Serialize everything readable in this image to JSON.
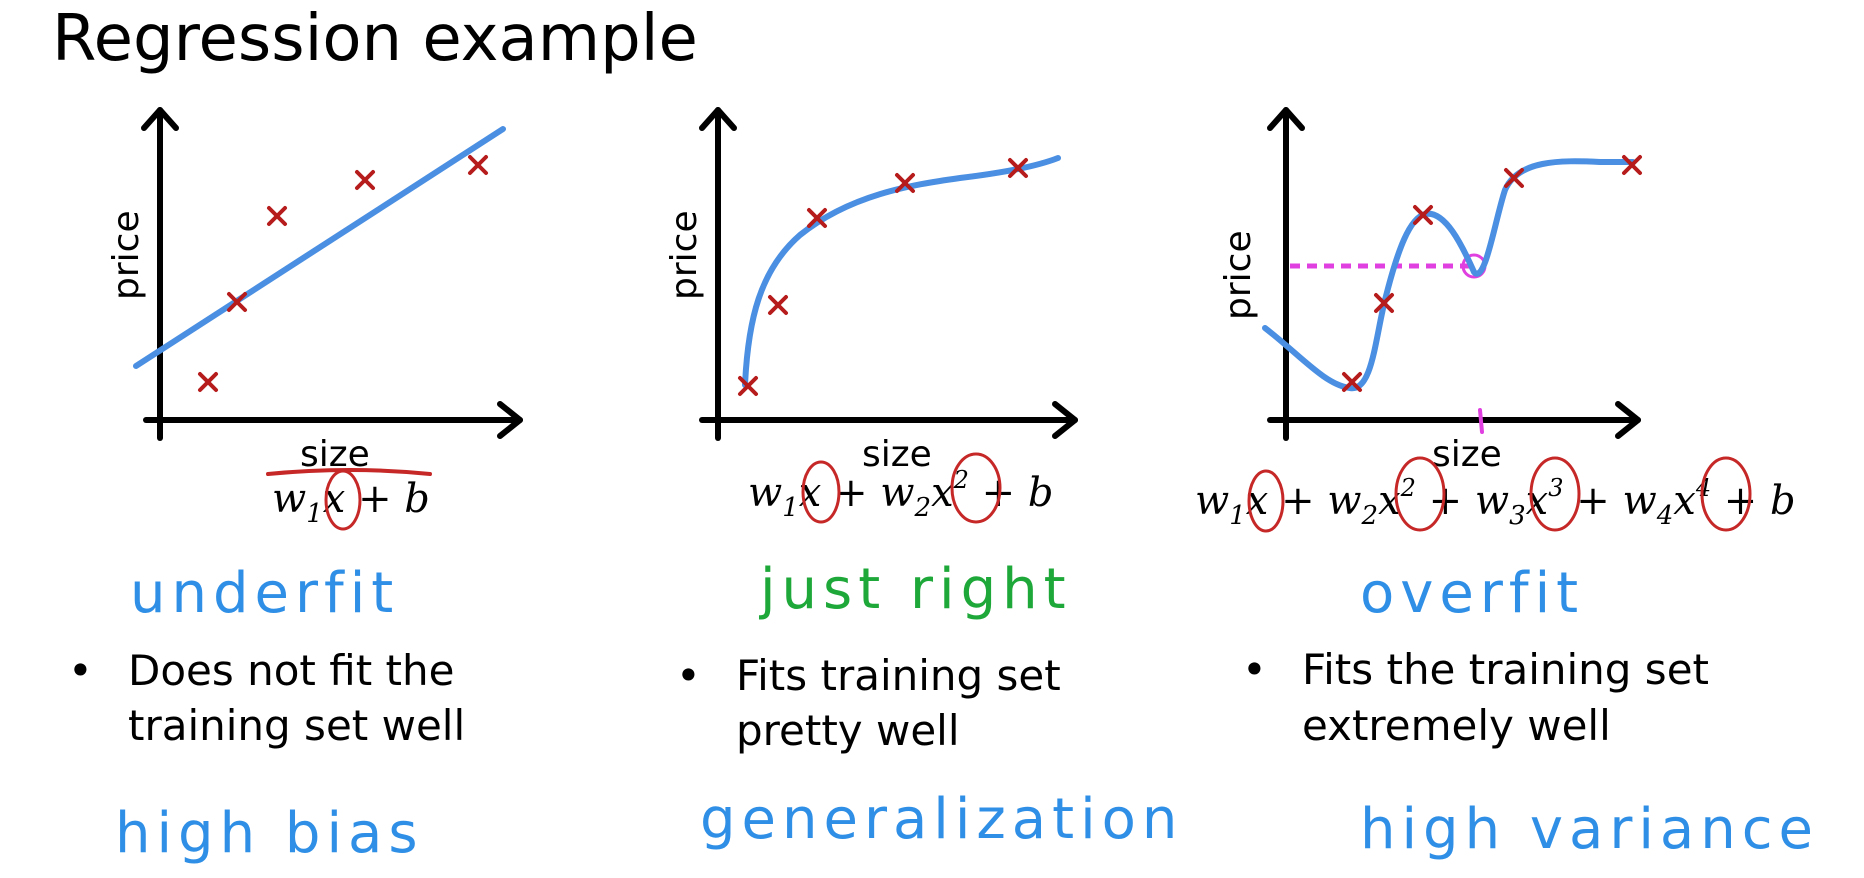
{
  "title": "Regression example",
  "colors": {
    "fit_line": "#4a8fe2",
    "data_points": "#b71c1c",
    "annotation_circle": "#c62828",
    "underfit": "#2f8fe6",
    "just_right": "#1fa83a",
    "overfit": "#2f8fe6",
    "highlight": "#e040e0"
  },
  "panels": [
    {
      "ylabel": "price",
      "xlabel": "size",
      "formula": {
        "t1": "w",
        "s1": "1",
        "v1": "x",
        "tail": " + b"
      },
      "verdict": "underfit",
      "bullets": [
        "Does not fit the",
        "training set well"
      ],
      "tag": "high bias"
    },
    {
      "ylabel": "price",
      "xlabel": "size",
      "formula": {
        "t1": "w",
        "s1": "1",
        "v1": "x",
        "p1": " + w",
        "s2": "2",
        "v2": "x",
        "e2": "2",
        "tail": " + b"
      },
      "verdict": "just right",
      "bullets": [
        "Fits training set",
        "pretty well"
      ],
      "tag": "generalization"
    },
    {
      "ylabel": "price",
      "xlabel": "size",
      "formula": {
        "t1": "w",
        "s1": "1",
        "v1": "x",
        "p1": " + w",
        "s2": "2",
        "v2": "x",
        "e2": "2",
        "p2": " + w",
        "s3": "3",
        "v3": "x",
        "e3": "3",
        "p3": " + w",
        "s4": "4",
        "v4": "x",
        "e4": "4",
        "tail": " + b"
      },
      "verdict": "overfit",
      "bullets": [
        "Fits the training set",
        "extremely well"
      ],
      "tag": "high variance"
    }
  ]
}
